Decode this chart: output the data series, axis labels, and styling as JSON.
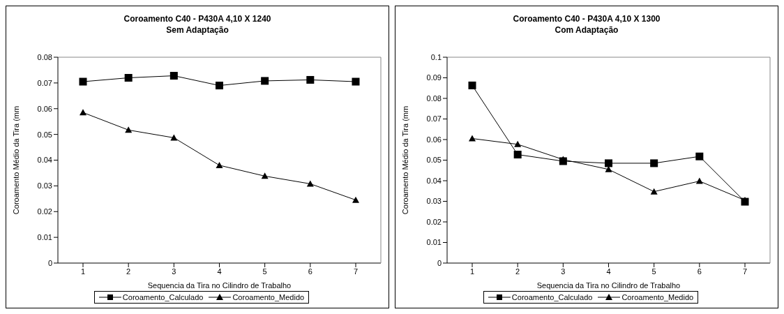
{
  "chart_data": [
    {
      "type": "line",
      "title": "Coroamento C40 - P430A 4,10 X 1240",
      "subtitle": "Sem Adaptação",
      "xlabel": "Sequencia da Tira no Cilindro de Trabalho",
      "ylabel": "Coroamento Médio da Tira (mm",
      "categories": [
        "1",
        "2",
        "3",
        "4",
        "5",
        "6",
        "7"
      ],
      "ylim": [
        0,
        0.08
      ],
      "yticks": [
        0,
        0.01,
        0.02,
        0.03,
        0.04,
        0.05,
        0.06,
        0.07,
        0.08
      ],
      "grid": false,
      "legend": "bottom",
      "line_style": "solid",
      "series": [
        {
          "name": "Coroamento_Calculado",
          "color": "#000000",
          "marker": "square",
          "values": [
            0.0705,
            0.072,
            0.0728,
            0.069,
            0.0708,
            0.0712,
            0.0705
          ]
        },
        {
          "name": "Coroamento_Medido",
          "color": "#000000",
          "marker": "triangle",
          "values": [
            0.0585,
            0.0517,
            0.0487,
            0.038,
            0.0338,
            0.0308,
            0.0245
          ]
        }
      ]
    },
    {
      "type": "line",
      "title": "Coroamento C40 - P430A 4,10 X 1300",
      "subtitle": "Com Adaptação",
      "xlabel": "Sequencia da Tira no Cilindro de Trabalho",
      "ylabel": "Coroamento Médio da Tira (mm",
      "categories": [
        "1",
        "2",
        "3",
        "4",
        "5",
        "6",
        "7"
      ],
      "ylim": [
        0,
        0.1
      ],
      "yticks": [
        0,
        0.01,
        0.02,
        0.03,
        0.04,
        0.05,
        0.06,
        0.07,
        0.08,
        0.09,
        0.1
      ],
      "grid": false,
      "legend": "bottom",
      "line_style": "solid",
      "series": [
        {
          "name": "Coroamento_Calculado",
          "color": "#000000",
          "marker": "square",
          "values": [
            0.0863,
            0.0527,
            0.0495,
            0.0485,
            0.0485,
            0.0518,
            0.0298
          ]
        },
        {
          "name": "Coroamento_Medido",
          "color": "#000000",
          "marker": "triangle",
          "values": [
            0.0605,
            0.0577,
            0.0503,
            0.0455,
            0.0347,
            0.0398,
            0.0305
          ]
        }
      ]
    }
  ]
}
